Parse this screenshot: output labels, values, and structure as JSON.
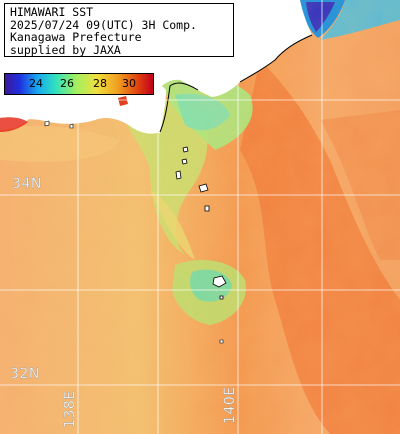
{
  "title": {
    "line1": "HIMAWARI SST",
    "line2": "2025/07/24 09(UTC) 3H Comp.",
    "line3": "Kanagawa Prefecture",
    "line4": "supplied by JAXA"
  },
  "scale": {
    "ticks": [
      "24",
      "26",
      "28",
      "30"
    ]
  },
  "grid": {
    "lat_34": "34N",
    "lat_32": "32N",
    "lon_138": "138E",
    "lon_140": "140E"
  },
  "colors": {
    "land": "#ffffff",
    "sea_warm": "#f5a060",
    "sea_cool": "#f0d070",
    "current": "#f08040",
    "cold_water": "#70e0a0",
    "gridline": "#ffffff"
  }
}
